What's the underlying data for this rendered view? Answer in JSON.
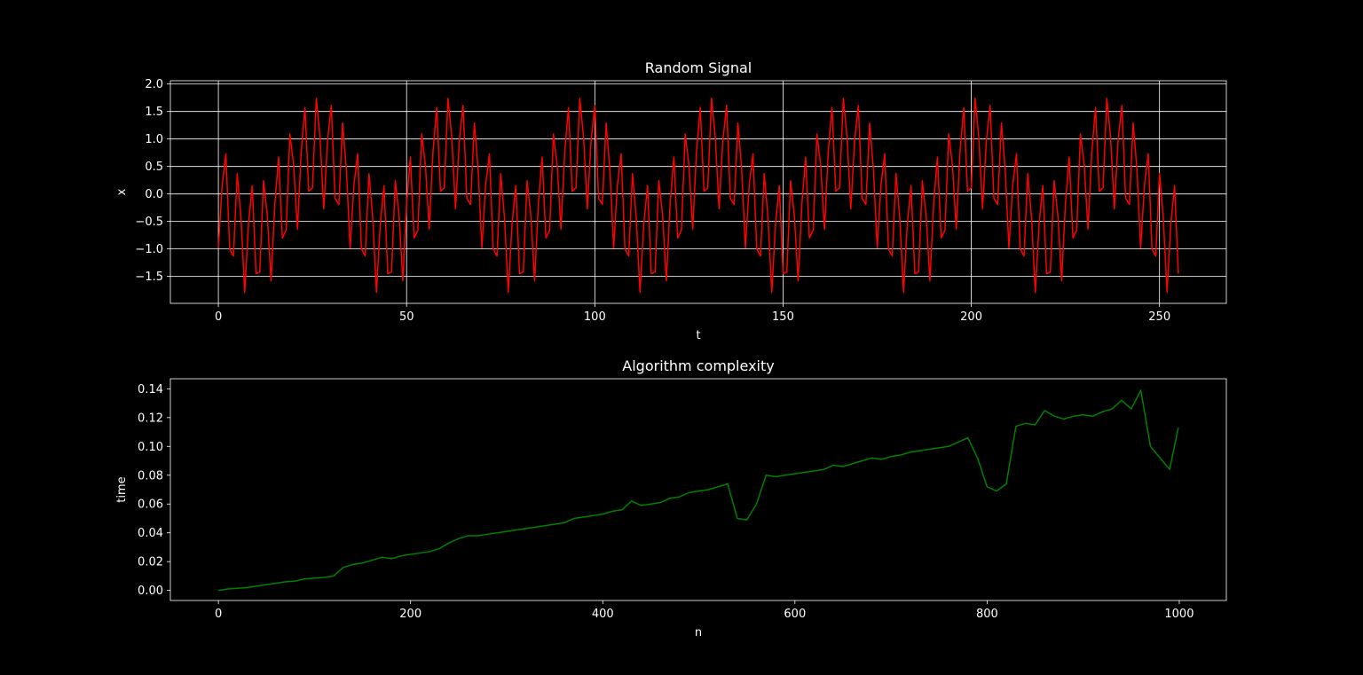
{
  "chart_data": [
    {
      "type": "line",
      "title": "Random Signal",
      "x_label": "t",
      "y_label": "x",
      "grid": true,
      "xlim": [
        -12.75,
        267.75
      ],
      "ylim": [
        -1.99,
        2.06
      ],
      "xticks": [
        0,
        50,
        100,
        150,
        200,
        250
      ],
      "yticks": [
        {
          "value": -1.5,
          "label": "−1.5"
        },
        {
          "value": -1,
          "label": "−1.0"
        },
        {
          "value": -0.5,
          "label": "−0.5"
        },
        {
          "value": 0,
          "label": "0.0"
        },
        0.5,
        {
          "value": 1,
          "label": "1.0"
        },
        1.5,
        {
          "value": 2,
          "label": "2.0"
        }
      ],
      "x": [
        0,
        1,
        2,
        3,
        4,
        5,
        6,
        7,
        8,
        9,
        10,
        11,
        12,
        13,
        14,
        15,
        16,
        17,
        18,
        19,
        20,
        21,
        22,
        23,
        24,
        25,
        26,
        27,
        28,
        29,
        30,
        31,
        32,
        33,
        34,
        35,
        36,
        37,
        38,
        39,
        40,
        41,
        42,
        43,
        44,
        45,
        46,
        47,
        48,
        49,
        50,
        51,
        52,
        53,
        54,
        55,
        56,
        57,
        58,
        59,
        60,
        61,
        62,
        63,
        64,
        65,
        66,
        67,
        68,
        69,
        70,
        71,
        72,
        73,
        74,
        75,
        76,
        77,
        78,
        79,
        80,
        81,
        82,
        83,
        84,
        85,
        86,
        87,
        88,
        89,
        90,
        91,
        92,
        93,
        94,
        95,
        96,
        97,
        98,
        99,
        100,
        101,
        102,
        103,
        104,
        105,
        106,
        107,
        108,
        109,
        110,
        111,
        112,
        113,
        114,
        115,
        116,
        117,
        118,
        119,
        120,
        121,
        122,
        123,
        124,
        125,
        126,
        127,
        128,
        129,
        130,
        131,
        132,
        133,
        134,
        135,
        136,
        137,
        138,
        139,
        140,
        141,
        142,
        143,
        144,
        145,
        146,
        147,
        148,
        149,
        150,
        151,
        152,
        153,
        154,
        155,
        156,
        157,
        158,
        159,
        160,
        161,
        162,
        163,
        164,
        165,
        166,
        167,
        168,
        169,
        170,
        171,
        172,
        173,
        174,
        175,
        176,
        177,
        178,
        179,
        180,
        181,
        182,
        183,
        184,
        185,
        186,
        187,
        188,
        189,
        190,
        191,
        192,
        193,
        194,
        195,
        196,
        197,
        198,
        199,
        200,
        201,
        202,
        203,
        204,
        205,
        206,
        207,
        208,
        209,
        210,
        211,
        212,
        213,
        214,
        215,
        216,
        217,
        218,
        219,
        220,
        221,
        222,
        223,
        224,
        225,
        226,
        227,
        228,
        229,
        230,
        231,
        232,
        233,
        234,
        235,
        236,
        237,
        238,
        239,
        240,
        241,
        242,
        243,
        244,
        245,
        246,
        247,
        248,
        249,
        250,
        251,
        252,
        253,
        254,
        255
      ],
      "series": [
        {
          "color": "#ff0000",
          "values": [
            -0.98,
            0.16,
            0.73,
            -1.0,
            -1.13,
            0.37,
            -0.43,
            -1.79,
            -0.55,
            0.15,
            -1.45,
            -1.42,
            0.24,
            -0.39,
            -1.58,
            -0.18,
            0.67,
            -0.8,
            -0.66,
            1.09,
            0.52,
            -0.64,
            0.76,
            1.57,
            0.05,
            0.11,
            1.74,
            1.03,
            -0.27,
            0.97,
            1.61,
            -0.08,
            -0.19,
            1.29,
            0.45,
            -0.98,
            0.16,
            0.73,
            -1.0,
            -1.13,
            0.37,
            -0.43,
            -1.79,
            -0.55,
            0.15,
            -1.45,
            -1.42,
            0.24,
            -0.39,
            -1.58,
            -0.18,
            0.67,
            -0.8,
            -0.66,
            1.09,
            0.52,
            -0.64,
            0.76,
            1.57,
            0.05,
            0.11,
            1.74,
            1.03,
            -0.27,
            0.97,
            1.61,
            -0.08,
            -0.19,
            1.29,
            0.45,
            -0.98,
            0.16,
            0.73,
            -1.0,
            -1.13,
            0.37,
            -0.43,
            -1.79,
            -0.55,
            0.15,
            -1.45,
            -1.42,
            0.24,
            -0.39,
            -1.58,
            -0.18,
            0.67,
            -0.8,
            -0.66,
            1.09,
            0.52,
            -0.64,
            0.76,
            1.57,
            0.05,
            0.11,
            1.74,
            1.03,
            -0.27,
            0.97,
            1.61,
            -0.08,
            -0.19,
            1.29,
            0.45,
            -0.98,
            0.16,
            0.73,
            -1.0,
            -1.13,
            0.37,
            -0.43,
            -1.79,
            -0.55,
            0.15,
            -1.45,
            -1.42,
            0.24,
            -0.39,
            -1.58,
            -0.18,
            0.67,
            -0.8,
            -0.66,
            1.09,
            0.52,
            -0.64,
            0.76,
            1.57,
            0.05,
            0.11,
            1.74,
            1.03,
            -0.27,
            0.97,
            1.61,
            -0.08,
            -0.19,
            1.29,
            0.45,
            -0.98,
            0.16,
            0.73,
            -1.0,
            -1.13,
            0.37,
            -0.43,
            -1.79,
            -0.55,
            0.15,
            -1.45,
            -1.42,
            0.24,
            -0.39,
            -1.58,
            -0.18,
            0.67,
            -0.8,
            -0.66,
            1.09,
            0.52,
            -0.64,
            0.76,
            1.57,
            0.05,
            0.11,
            1.74,
            1.03,
            -0.27,
            0.97,
            1.61,
            -0.08,
            -0.19,
            1.29,
            0.45,
            -0.98,
            0.16,
            0.73,
            -1.0,
            -1.13,
            0.37,
            -0.43,
            -1.79,
            -0.55,
            0.15,
            -1.45,
            -1.42,
            0.24,
            -0.39,
            -1.58,
            -0.18,
            0.67,
            -0.8,
            -0.66,
            1.09,
            0.52,
            -0.64,
            0.76,
            1.57,
            0.05,
            0.11,
            1.74,
            1.03,
            -0.27,
            0.97,
            1.61,
            -0.08,
            -0.19,
            1.29,
            0.45,
            -0.98,
            0.16,
            0.73,
            -1.0,
            -1.13,
            0.37,
            -0.43,
            -1.79,
            -0.55,
            0.15,
            -1.45,
            -1.42,
            0.24,
            -0.39,
            -1.58,
            -0.18,
            0.67,
            -0.8,
            -0.66,
            1.09,
            0.52,
            -0.64,
            0.76,
            1.57,
            0.05,
            0.11,
            1.74,
            1.03,
            -0.27,
            0.97,
            1.61,
            -0.08,
            -0.19,
            1.29,
            0.45,
            -0.98,
            0.16,
            0.73,
            -1.0,
            -1.13,
            0.37,
            -0.43,
            -1.79,
            -0.55,
            0.15,
            -1.45
          ]
        }
      ]
    },
    {
      "type": "line",
      "title": "Algorithm complexity",
      "x_label": "n",
      "y_label": "time",
      "grid": false,
      "xlim": [
        -50,
        1049
      ],
      "ylim": [
        -0.007,
        0.147
      ],
      "xticks": [
        0,
        200,
        400,
        600,
        800,
        1000
      ],
      "yticks": [
        {
          "value": 0,
          "label": "0.00"
        },
        0.02,
        0.04,
        0.06,
        0.08,
        {
          "value": 0.1,
          "label": "0.10"
        },
        0.12,
        0.14
      ],
      "x": [
        0,
        10,
        20,
        30,
        40,
        50,
        60,
        70,
        80,
        90,
        100,
        110,
        120,
        130,
        140,
        150,
        160,
        170,
        180,
        190,
        200,
        210,
        220,
        230,
        240,
        250,
        260,
        270,
        280,
        290,
        300,
        310,
        320,
        330,
        340,
        350,
        360,
        370,
        380,
        390,
        400,
        410,
        420,
        430,
        440,
        450,
        460,
        470,
        480,
        490,
        500,
        510,
        520,
        530,
        540,
        550,
        560,
        570,
        580,
        590,
        600,
        610,
        620,
        630,
        640,
        650,
        660,
        670,
        680,
        690,
        700,
        710,
        720,
        730,
        740,
        750,
        760,
        770,
        780,
        790,
        800,
        810,
        820,
        830,
        840,
        850,
        860,
        870,
        880,
        890,
        900,
        910,
        920,
        930,
        940,
        950,
        960,
        970,
        980,
        990,
        999
      ],
      "series": [
        {
          "color": "#008000",
          "values": [
            0.0,
            0.001,
            0.0015,
            0.002,
            0.003,
            0.004,
            0.005,
            0.006,
            0.0065,
            0.008,
            0.0085,
            0.009,
            0.01,
            0.016,
            0.018,
            0.019,
            0.021,
            0.023,
            0.022,
            0.024,
            0.025,
            0.026,
            0.027,
            0.029,
            0.033,
            0.036,
            0.038,
            0.038,
            0.039,
            0.04,
            0.041,
            0.042,
            0.043,
            0.044,
            0.045,
            0.046,
            0.047,
            0.05,
            0.051,
            0.052,
            0.053,
            0.055,
            0.056,
            0.062,
            0.059,
            0.06,
            0.061,
            0.064,
            0.065,
            0.068,
            0.069,
            0.07,
            0.072,
            0.074,
            0.05,
            0.049,
            0.06,
            0.08,
            0.079,
            0.08,
            0.081,
            0.082,
            0.083,
            0.084,
            0.087,
            0.086,
            0.088,
            0.09,
            0.092,
            0.091,
            0.093,
            0.094,
            0.096,
            0.097,
            0.098,
            0.099,
            0.1,
            0.103,
            0.106,
            0.092,
            0.072,
            0.069,
            0.074,
            0.114,
            0.116,
            0.115,
            0.125,
            0.121,
            0.119,
            0.121,
            0.122,
            0.121,
            0.124,
            0.126,
            0.132,
            0.126,
            0.139,
            0.1,
            0.092,
            0.084,
            0.113
          ]
        }
      ]
    }
  ]
}
